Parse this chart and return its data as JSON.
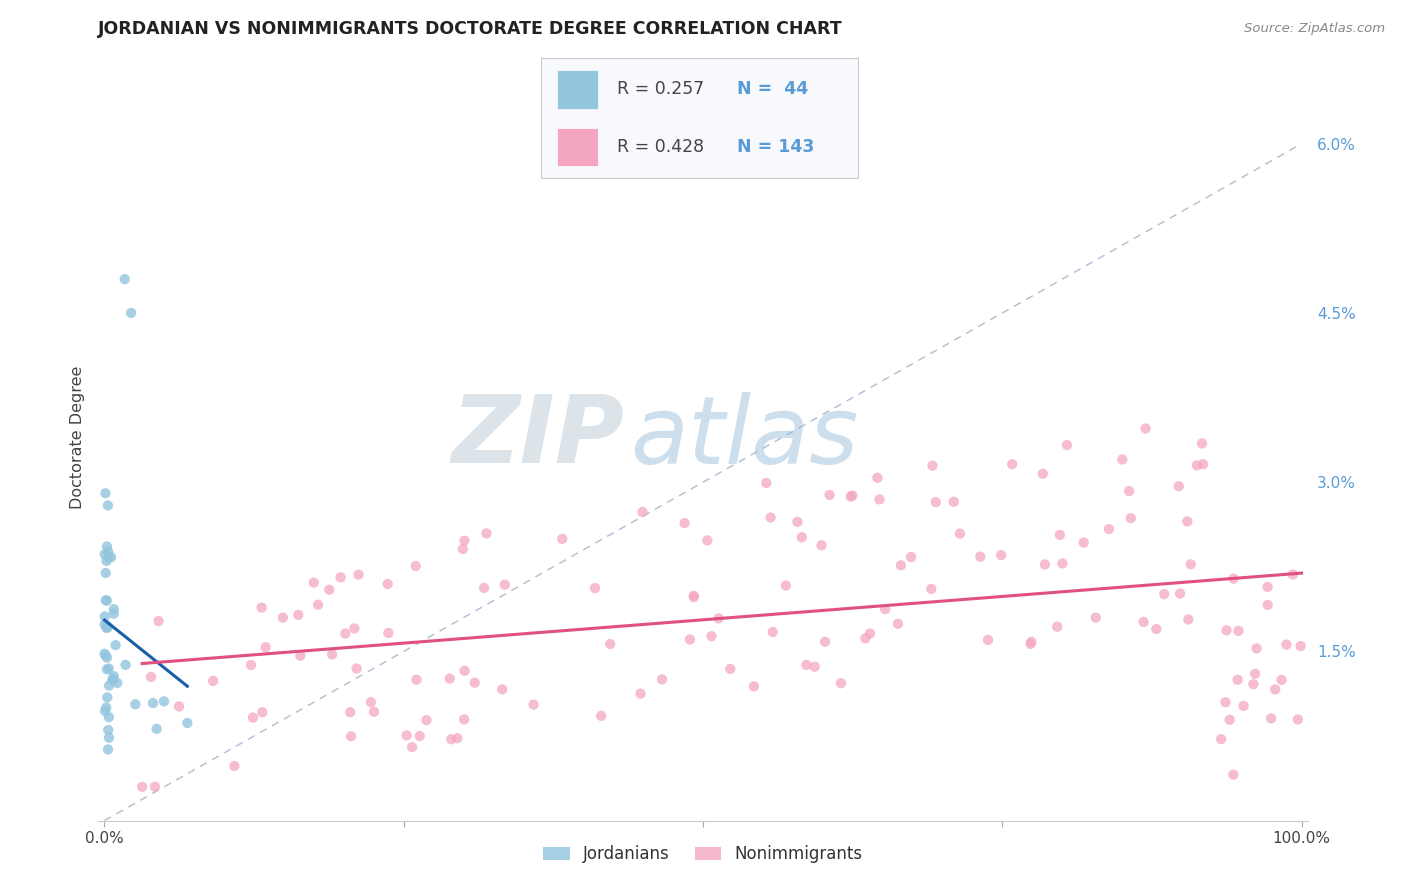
{
  "title": "JORDANIAN VS NONIMMIGRANTS DOCTORATE DEGREE CORRELATION CHART",
  "source": "Source: ZipAtlas.com",
  "ylabel_label": "Doctorate Degree",
  "jordanian_color": "#92c5de",
  "nonimmigrant_color": "#f4a6c0",
  "trendline_jordan_color": "#1a5fa8",
  "trendline_nonimm_color": "#e05080",
  "diagonal_color": "#aab8cc",
  "watermark_zip": "#c8d4e0",
  "watermark_atlas": "#90b8d8",
  "background_color": "#ffffff",
  "grid_color": "#d8dfe8",
  "ylim_max": 0.068,
  "y_ticks": [
    0.0,
    0.015,
    0.03,
    0.045,
    0.06
  ],
  "y_tick_labels": [
    "",
    "1.5%",
    "3.0%",
    "4.5%",
    "6.0%"
  ]
}
